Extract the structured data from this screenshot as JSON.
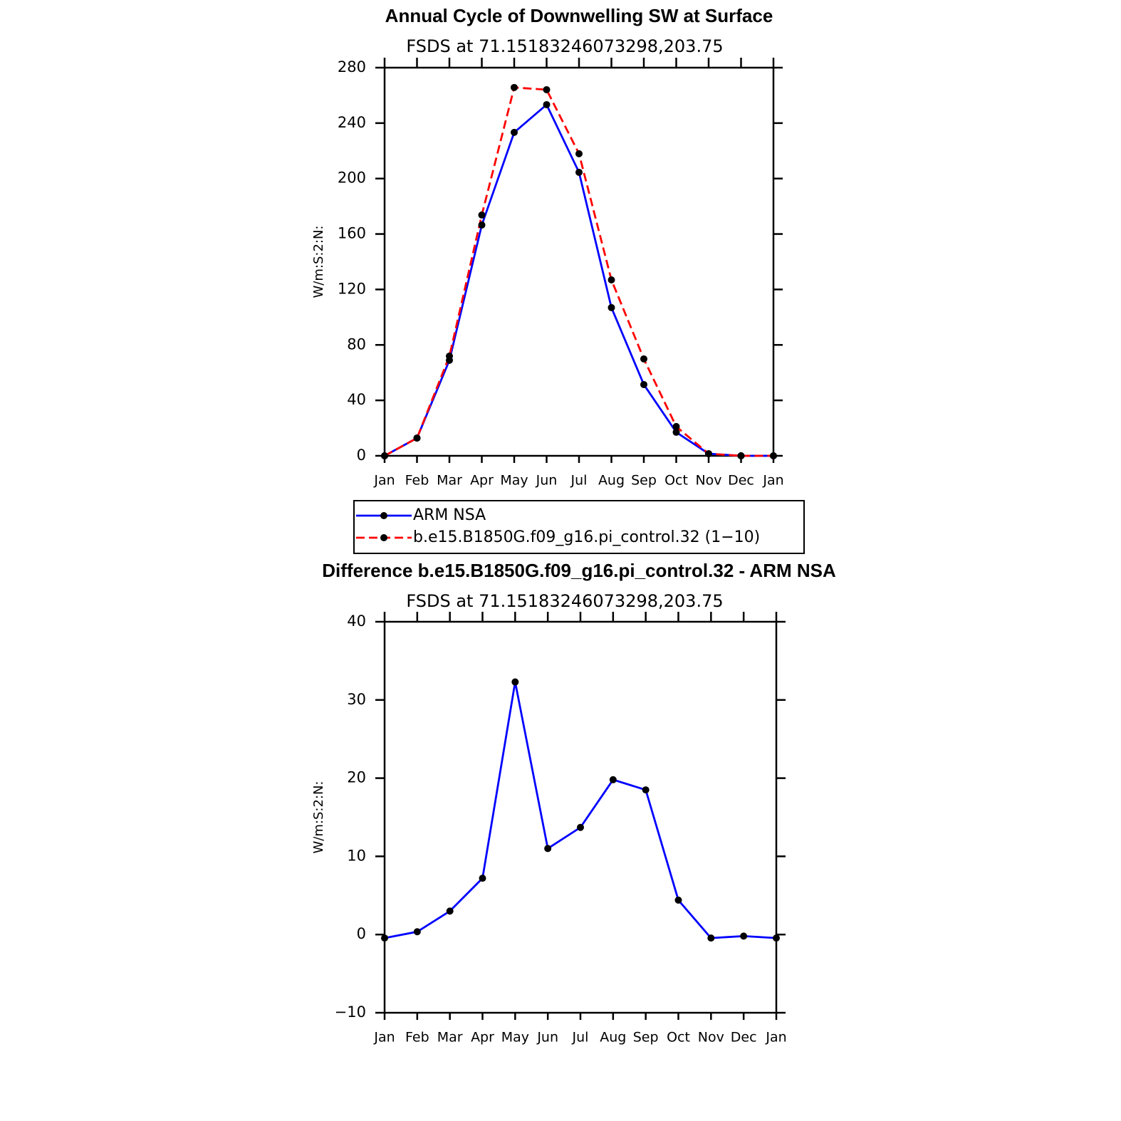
{
  "chart_data": [
    {
      "type": "line",
      "title": "Annual Cycle of Downwelling SW at Surface",
      "subtitle": "FSDS at 71.15183246073298,203.75",
      "ylabel": "W/m:S:2:N:",
      "categories": [
        "Jan",
        "Feb",
        "Mar",
        "Apr",
        "May",
        "Jun",
        "Jul",
        "Aug",
        "Sep",
        "Oct",
        "Nov",
        "Dec",
        "Jan"
      ],
      "series": [
        {
          "name": "ARM NSA",
          "color": "#0000ff",
          "linestyle": "solid",
          "values": [
            0,
            12.8,
            68.9,
            166.5,
            233.3,
            253.3,
            204.5,
            106.9,
            51.4,
            17,
            1.5,
            0,
            0
          ]
        },
        {
          "name": "b.e15.B1850G.f09_g16.pi_control.32 (1−10)",
          "color": "#ff0000",
          "linestyle": "dashed",
          "values": [
            0,
            12.8,
            71.9,
            173.7,
            265.7,
            264.1,
            217.9,
            126.9,
            69.9,
            21.1,
            1.5,
            0,
            0
          ]
        }
      ],
      "marker_color": "#000000",
      "ylim": [
        0,
        280
      ],
      "yticks": [
        0,
        40,
        80,
        120,
        160,
        200,
        240,
        280
      ],
      "legend": "below"
    },
    {
      "type": "line",
      "title": "Difference b.e15.B1850G.f09_g16.pi_control.32 - ARM NSA",
      "subtitle": "FSDS at 71.15183246073298,203.75",
      "ylabel": "W/m:S:2:N:",
      "categories": [
        "Jan",
        "Feb",
        "Mar",
        "Apr",
        "May",
        "Jun",
        "Jul",
        "Aug",
        "Sep",
        "Oct",
        "Nov",
        "Dec",
        "Jan"
      ],
      "series": [
        {
          "color": "#0000ff",
          "linestyle": "solid",
          "values": [
            -0.45,
            0.36,
            3.0,
            7.2,
            32.3,
            11.0,
            13.7,
            19.8,
            18.5,
            4.4,
            -0.45,
            -0.2,
            -0.45
          ]
        }
      ],
      "marker_color": "#000000",
      "ylim": [
        -10,
        40
      ],
      "yticks": [
        {
          "value": -10,
          "label": "−10"
        },
        0,
        10,
        20,
        30,
        40
      ]
    }
  ]
}
